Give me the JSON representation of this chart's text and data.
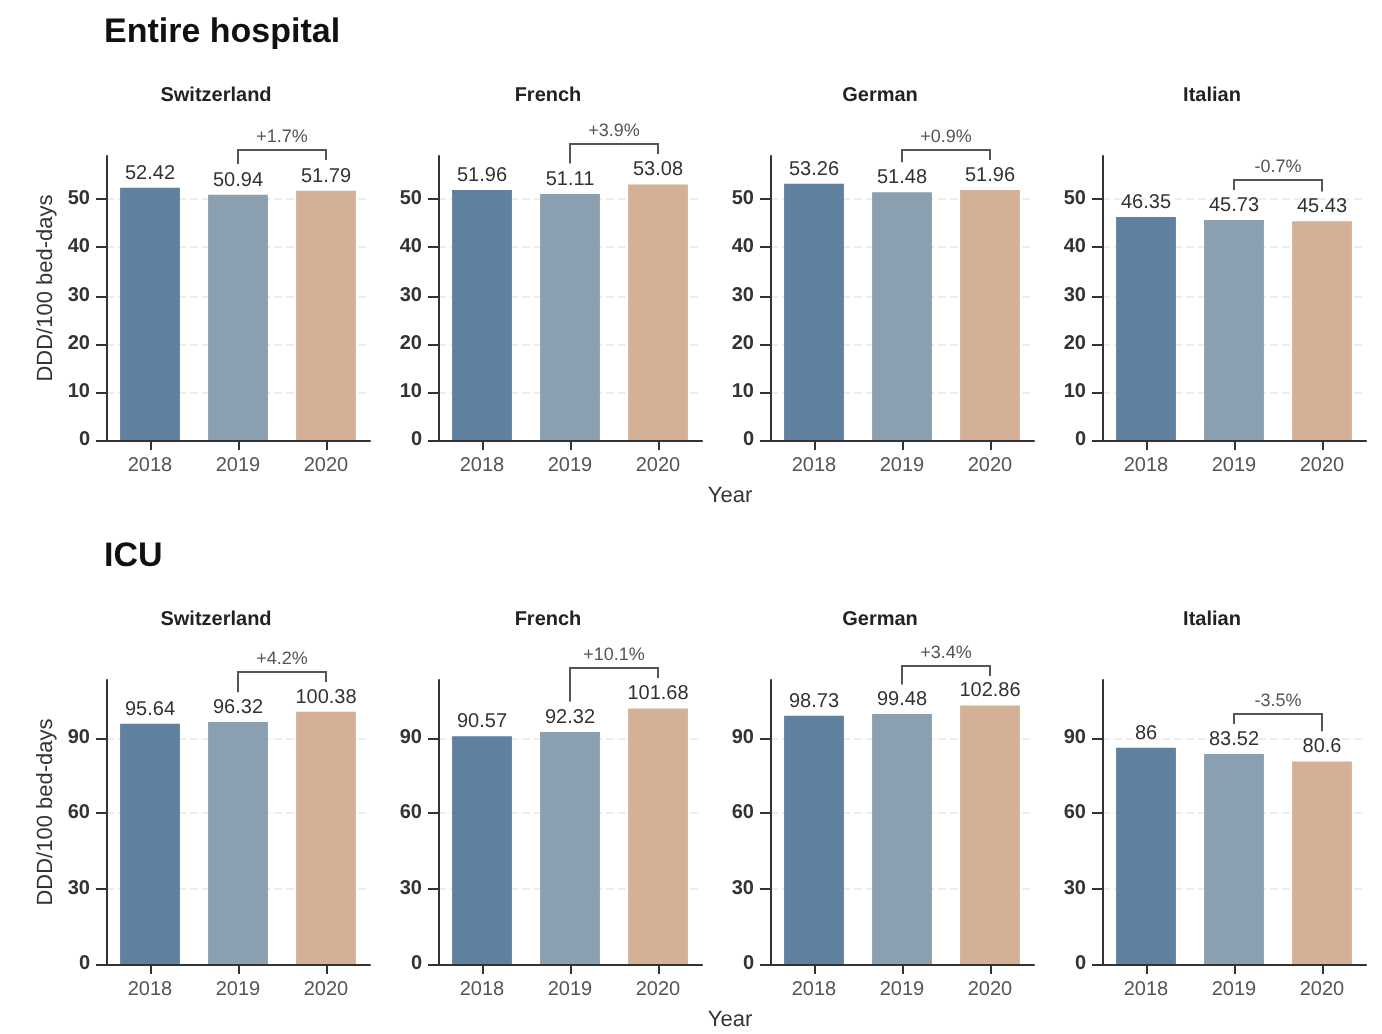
{
  "chart_data": [
    {
      "type": "bar",
      "title": "Entire hospital",
      "subtitle": "Switzerland",
      "ylabel": "DDD/100 bed-days",
      "categories": [
        "2018",
        "2019",
        "2020"
      ],
      "values": [
        52.42,
        50.94,
        51.79
      ],
      "colors": [
        "#5f809e",
        "#8a9fb0",
        "#d4b196"
      ],
      "ylim": [
        0,
        59
      ],
      "yticks": [
        0,
        10,
        20,
        30,
        40,
        50
      ],
      "grid": "y",
      "data_labels": true,
      "annotations": [
        "+1.7%"
      ]
    },
    {
      "type": "bar",
      "subtitle": "French",
      "xlabel": "Year",
      "categories": [
        "2018",
        "2019",
        "2020"
      ],
      "values": [
        51.96,
        51.11,
        53.08
      ],
      "colors": [
        "#5f809e",
        "#8a9fb0",
        "#d4b196"
      ],
      "ylim": [
        0,
        59
      ],
      "yticks": [
        0,
        10,
        20,
        30,
        40,
        50
      ],
      "grid": "y",
      "data_labels": true,
      "annotations": [
        "+3.9%"
      ]
    },
    {
      "type": "bar",
      "subtitle": "German",
      "categories": [
        "2018",
        "2019",
        "2020"
      ],
      "values": [
        53.26,
        51.48,
        51.96
      ],
      "colors": [
        "#5f809e",
        "#8a9fb0",
        "#d4b196"
      ],
      "ylim": [
        0,
        59
      ],
      "yticks": [
        0,
        10,
        20,
        30,
        40,
        50
      ],
      "grid": "y",
      "data_labels": true,
      "annotations": [
        "+0.9%"
      ]
    },
    {
      "type": "bar",
      "subtitle": "Italian",
      "categories": [
        "2018",
        "2019",
        "2020"
      ],
      "values": [
        46.35,
        45.73,
        45.43
      ],
      "colors": [
        "#5f809e",
        "#8a9fb0",
        "#d4b196"
      ],
      "ylim": [
        0,
        59
      ],
      "yticks": [
        0,
        10,
        20,
        30,
        40,
        50
      ],
      "grid": "y",
      "data_labels": true,
      "annotations": [
        "-0.7%"
      ]
    },
    {
      "type": "bar",
      "title": "ICU",
      "subtitle": "Switzerland",
      "ylabel": "DDD/100 bed-days",
      "categories": [
        "2018",
        "2019",
        "2020"
      ],
      "values": [
        95.64,
        96.32,
        100.38
      ],
      "colors": [
        "#5f809e",
        "#8a9fb0",
        "#d4b196"
      ],
      "ylim": [
        0,
        113
      ],
      "yticks": [
        0,
        30,
        60,
        90
      ],
      "grid": "y",
      "data_labels": true,
      "annotations": [
        "+4.2%"
      ]
    },
    {
      "type": "bar",
      "subtitle": "French",
      "xlabel": "Year",
      "categories": [
        "2018",
        "2019",
        "2020"
      ],
      "values": [
        90.57,
        92.32,
        101.68
      ],
      "colors": [
        "#5f809e",
        "#8a9fb0",
        "#d4b196"
      ],
      "ylim": [
        0,
        113
      ],
      "yticks": [
        0,
        30,
        60,
        90
      ],
      "grid": "y",
      "data_labels": true,
      "annotations": [
        "+10.1%"
      ]
    },
    {
      "type": "bar",
      "subtitle": "German",
      "categories": [
        "2018",
        "2019",
        "2020"
      ],
      "values": [
        98.73,
        99.48,
        102.86
      ],
      "colors": [
        "#5f809e",
        "#8a9fb0",
        "#d4b196"
      ],
      "ylim": [
        0,
        113
      ],
      "yticks": [
        0,
        30,
        60,
        90
      ],
      "grid": "y",
      "data_labels": true,
      "annotations": [
        "+3.4%"
      ]
    },
    {
      "type": "bar",
      "subtitle": "Italian",
      "categories": [
        "2018",
        "2019",
        "2020"
      ],
      "values": [
        86,
        83.52,
        80.6
      ],
      "colors": [
        "#5f809e",
        "#8a9fb0",
        "#d4b196"
      ],
      "ylim": [
        0,
        113
      ],
      "yticks": [
        0,
        30,
        60,
        90
      ],
      "grid": "y",
      "data_labels": true,
      "annotations": [
        "-3.5%"
      ]
    }
  ]
}
